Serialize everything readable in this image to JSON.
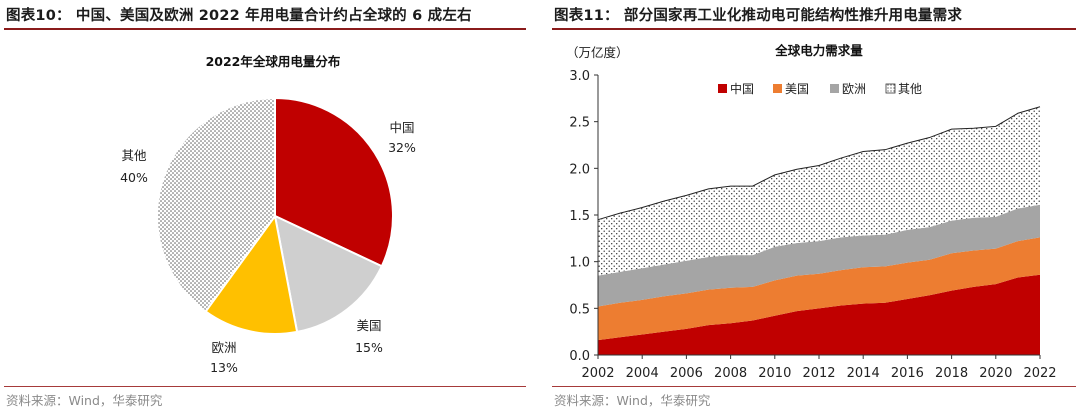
{
  "left": {
    "figure_title": "图表10： 中国、美国及欧洲 2022 年用电量合计约占全球的 6 成左右",
    "source": "资料来源：Wind，华泰研究"
  },
  "right": {
    "figure_title": "图表11： 部分国家再工业化推动电可能结构性推升用电量需求",
    "source": "资料来源：Wind，华泰研究"
  },
  "chart_data": [
    {
      "type": "pie",
      "title": "2022年全球用电量分布",
      "slices": [
        {
          "name": "中国",
          "value": 32,
          "label": "32%",
          "color": "#c00000"
        },
        {
          "name": "美国",
          "value": 15,
          "label": "15%",
          "color": "#cfcfcf"
        },
        {
          "name": "欧洲",
          "value": 13,
          "label": "13%",
          "color": "#ffc000"
        },
        {
          "name": "其他",
          "value": 40,
          "label": "40%",
          "color": "#ffffff",
          "pattern": "dotted"
        }
      ],
      "start_angle": "12 o'clock",
      "direction": "clockwise"
    },
    {
      "type": "area",
      "stacked": true,
      "title": "全球电力需求量",
      "unit_label": "（万亿度）",
      "xlim": [
        2002,
        2022
      ],
      "ylim": [
        0,
        3.0
      ],
      "xticks": [
        2002,
        2004,
        2006,
        2008,
        2010,
        2012,
        2014,
        2016,
        2018,
        2020,
        2022
      ],
      "yticks": [
        0.0,
        0.5,
        1.0,
        1.5,
        2.0,
        2.5,
        3.0
      ],
      "ytick_labels": [
        "0.0",
        "0.5",
        "1.0",
        "1.5",
        "2.0",
        "2.5",
        "3.0"
      ],
      "legend_position": "top",
      "x": [
        2002,
        2003,
        2004,
        2005,
        2006,
        2007,
        2008,
        2009,
        2010,
        2011,
        2012,
        2013,
        2014,
        2015,
        2016,
        2017,
        2018,
        2019,
        2020,
        2021,
        2022
      ],
      "series": [
        {
          "name": "中国",
          "color": "#c00000",
          "values": [
            0.16,
            0.19,
            0.22,
            0.25,
            0.28,
            0.32,
            0.34,
            0.37,
            0.42,
            0.47,
            0.5,
            0.53,
            0.55,
            0.56,
            0.6,
            0.64,
            0.69,
            0.73,
            0.76,
            0.83,
            0.86
          ]
        },
        {
          "name": "美国",
          "color": "#ed7d31",
          "values": [
            0.36,
            0.37,
            0.37,
            0.38,
            0.38,
            0.38,
            0.38,
            0.36,
            0.38,
            0.38,
            0.37,
            0.38,
            0.39,
            0.39,
            0.39,
            0.38,
            0.4,
            0.39,
            0.38,
            0.39,
            0.4
          ]
        },
        {
          "name": "欧洲",
          "color": "#a5a5a5",
          "values": [
            0.33,
            0.33,
            0.34,
            0.34,
            0.35,
            0.35,
            0.35,
            0.34,
            0.36,
            0.35,
            0.35,
            0.35,
            0.34,
            0.34,
            0.35,
            0.35,
            0.35,
            0.35,
            0.34,
            0.35,
            0.35
          ]
        },
        {
          "name": "其他",
          "color": "#ffffff",
          "pattern": "dotted",
          "values": [
            0.6,
            0.63,
            0.65,
            0.68,
            0.7,
            0.73,
            0.74,
            0.74,
            0.77,
            0.79,
            0.81,
            0.85,
            0.9,
            0.91,
            0.93,
            0.96,
            0.98,
            0.96,
            0.97,
            1.02,
            1.05
          ]
        }
      ]
    }
  ]
}
